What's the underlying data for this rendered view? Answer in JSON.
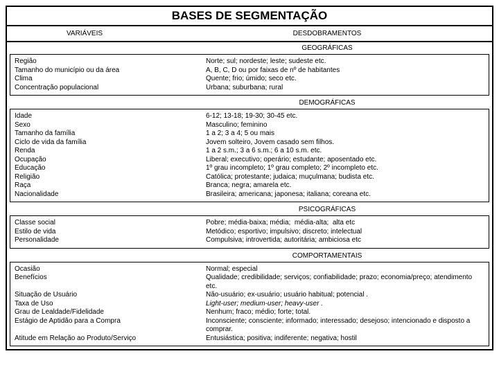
{
  "title": "BASES DE SEGMENTAÇÃO",
  "header_left": "VARIÁVEIS",
  "header_right": "DESDOBRAMENTOS",
  "sections": [
    {
      "category": "GEOGRÁFICAS",
      "left": [
        "Região",
        "Tamanho do município ou da área",
        "Clima",
        "Concentração populacional"
      ],
      "right": [
        "Norte; sul; nordeste; leste; sudeste etc.",
        "A, B, C, D ou por faixas de nº de habitantes",
        "Quente; frio; úmido; seco etc.",
        "Urbana; suburbana; rural"
      ]
    },
    {
      "category": "DEMOGRÁFICAS",
      "left": [
        "Idade",
        "Sexo",
        "Tamanho da família",
        "Ciclo de vida da família",
        "Renda",
        "Ocupação",
        "Educação",
        "Religião",
        "Raça",
        "Nacionalidade"
      ],
      "right": [
        "6-12; 13-18; 19-30; 30-45 etc.",
        "Masculino; feminino",
        "1 a 2; 3 a 4; 5 ou mais",
        "Jovem solteiro, Jovem casado sem filhos.",
        "1 a 2 s.m.; 3 a 6 s.m.; 6 a 10 s.m. etc.",
        "Liberal; executivo; operário; estudante; aposentado etc.",
        "1º grau incompleto; 1º grau completo; 2º incompleto etc.",
        "Católica; protestante; judaica; muçulmana; budista etc.",
        "Branca; negra; amarela etc.",
        "Brasileira; americana; japonesa; italiana; coreana etc."
      ]
    },
    {
      "category": "PSICOGRÁFICAS",
      "left": [
        "Classe social",
        "Estilo de vida",
        "Personalidade"
      ],
      "right": [
        "Pobre; média-baixa; média;  média-alta;  alta etc",
        "Metódico; esportivo; impulsivo; discreto; intelectual",
        "Compulsiva; introvertida; autoritária; ambiciosa etc"
      ]
    },
    {
      "category": "COMPORTAMENTAIS",
      "left": [
        "Ocasião",
        "Benefícios",
        "",
        "Situação de Usuário",
        "Taxa de Uso",
        "Grau de Lealdade/Fidelidade",
        "Estágio de Aptidão para a Compra",
        "",
        "Atitude em Relação ao Produto/Serviço"
      ],
      "right": [
        "Normal; especial",
        "Qualidade; credibilidade; serviços; confiabilidade; prazo; economia/preço; atendimento etc.",
        "Não-usuário; ex-usuário; usuário habitual; potencial .",
        {
          "italic": true,
          "text": "Light-user; medium-user; heavy-user ."
        },
        "Nenhum; fraco; médio; forte; total.",
        "Inconsciente; consciente; informado; interessado; desejoso; intencionado e disposto a comprar.",
        "Entusiástica; positiva; indiferente; negativa; hostil"
      ]
    }
  ]
}
